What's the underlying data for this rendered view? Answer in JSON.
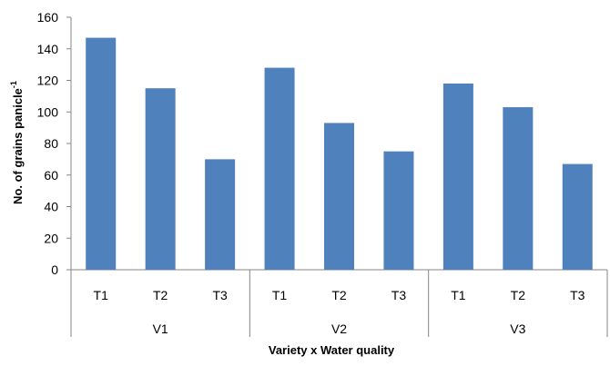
{
  "chart_data": {
    "type": "bar",
    "groups": [
      "V1",
      "V2",
      "V3"
    ],
    "categories": [
      "T1",
      "T2",
      "T3",
      "T1",
      "T2",
      "T3",
      "T1",
      "T2",
      "T3"
    ],
    "values": [
      147,
      115,
      70,
      128,
      93,
      75,
      118,
      103,
      67
    ],
    "xlabel": "Variety  x Water quality",
    "ylabel": {
      "main": "No. of grains panicle",
      "superscript": "-1"
    },
    "ylim": [
      0,
      160
    ],
    "yticks": [
      0,
      20,
      40,
      60,
      80,
      100,
      120,
      140,
      160
    ],
    "bar_color": "#4f81bd",
    "grid": false,
    "legend": "none"
  }
}
